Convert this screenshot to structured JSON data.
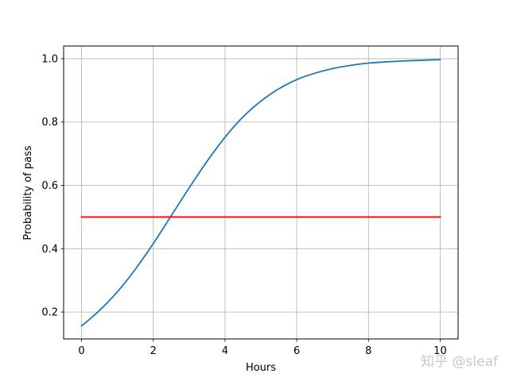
{
  "chart_data": {
    "type": "line",
    "title": "",
    "xlabel": "Hours",
    "ylabel": "Probability of pass",
    "xlim": [
      -0.5,
      10.5
    ],
    "ylim": [
      0.115,
      1.04
    ],
    "xticks": [
      0,
      2,
      4,
      6,
      8,
      10
    ],
    "yticks": [
      0.2,
      0.4,
      0.6,
      0.8,
      1.0
    ],
    "xtick_labels": [
      "0",
      "2",
      "4",
      "6",
      "8",
      "10"
    ],
    "ytick_labels": [
      "0.2",
      "0.4",
      "0.6",
      "0.8",
      "1.0"
    ],
    "grid": true,
    "legend": "none",
    "series": [
      {
        "color": "#1f77b4",
        "x": [
          0,
          0.5,
          1,
          1.5,
          2,
          2.5,
          3,
          3.5,
          4,
          4.5,
          5,
          5.5,
          6,
          6.5,
          7,
          7.5,
          8,
          8.5,
          9,
          9.5,
          10
        ],
        "y": [
          0.156,
          0.205,
          0.264,
          0.335,
          0.416,
          0.504,
          0.592,
          0.676,
          0.752,
          0.816,
          0.866,
          0.905,
          0.934,
          0.954,
          0.969,
          0.979,
          0.986,
          0.99,
          0.993,
          0.995,
          0.997
        ]
      },
      {
        "color": "#ff0000",
        "x": [
          0,
          10
        ],
        "y": [
          0.5,
          0.5
        ]
      }
    ]
  },
  "watermark": {
    "text": "知乎 @sleaf"
  }
}
